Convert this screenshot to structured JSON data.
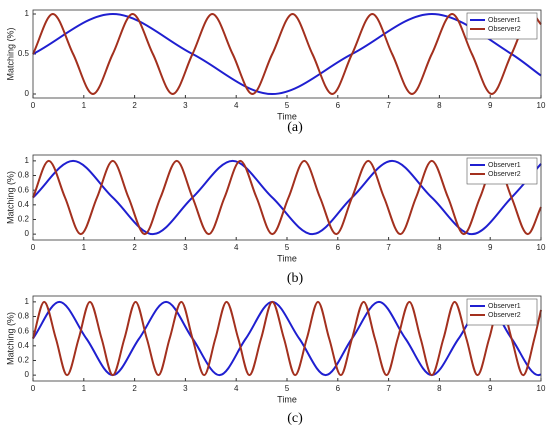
{
  "chart_data": [
    {
      "type": "line",
      "caption": "(a)",
      "xlabel": "Time",
      "ylabel": "Matching (%)",
      "xlim": [
        0,
        10
      ],
      "ylim": [
        -0.05,
        1.05
      ],
      "xticks": [
        0,
        1,
        2,
        3,
        4,
        5,
        6,
        7,
        8,
        9,
        10
      ],
      "yticks": [
        0,
        0.5,
        1
      ],
      "legend": "upper-right",
      "series": [
        {
          "name": "Observer1",
          "color": "#1f1fd0",
          "x": [
            0,
            1.57,
            3.14,
            4.71,
            6.28,
            7.85,
            9.42,
            10
          ],
          "values": [
            0.5,
            1,
            0.5,
            0,
            0.5,
            1,
            0.5,
            0.23
          ]
        },
        {
          "name": "Observer2",
          "color": "#a3301e",
          "x": [
            0,
            0.39,
            0.79,
            1.18,
            1.57,
            1.96,
            2.36,
            2.75,
            3.14,
            3.53,
            3.93,
            4.32,
            4.71,
            5.11,
            5.5,
            5.89,
            6.28,
            6.68,
            7.07,
            7.46,
            7.85,
            8.25,
            8.64,
            9.03,
            9.42,
            9.82,
            10
          ],
          "values": [
            0.5,
            1,
            0.5,
            0,
            0.5,
            1,
            0.5,
            0,
            0.5,
            1,
            0.5,
            0,
            0.5,
            1,
            0.5,
            0,
            0.5,
            1,
            0.5,
            0,
            0.5,
            1,
            0.5,
            0,
            0.5,
            1,
            0.87
          ]
        }
      ]
    },
    {
      "type": "line",
      "caption": "(b)",
      "xlabel": "Time",
      "ylabel": "Matching (%)",
      "xlim": [
        0,
        10
      ],
      "ylim": [
        -0.08,
        1.08
      ],
      "xticks": [
        0,
        1,
        2,
        3,
        4,
        5,
        6,
        7,
        8,
        9,
        10
      ],
      "yticks": [
        0,
        0.2,
        0.4,
        0.6,
        0.8,
        1
      ],
      "legend": "upper-right",
      "series": [
        {
          "name": "Observer1",
          "color": "#1f1fd0",
          "x": [
            0,
            0.79,
            1.57,
            2.36,
            3.14,
            3.93,
            4.71,
            5.5,
            6.28,
            7.07,
            7.85,
            8.64,
            9.42,
            10
          ],
          "values": [
            0.5,
            1,
            0.5,
            0,
            0.5,
            1,
            0.5,
            0,
            0.5,
            1,
            0.5,
            0,
            0.5,
            0.96
          ]
        },
        {
          "name": "Observer2",
          "color": "#a3301e",
          "x": [
            0,
            0.31,
            0.63,
            0.94,
            1.26,
            1.57,
            1.88,
            2.2,
            2.51,
            2.83,
            3.14,
            3.46,
            3.77,
            4.08,
            4.4,
            4.71,
            5.03,
            5.34,
            5.65,
            5.97,
            6.28,
            6.6,
            6.91,
            7.23,
            7.54,
            7.85,
            8.17,
            8.48,
            8.8,
            9.11,
            9.42,
            9.74,
            10
          ],
          "values": [
            0.5,
            1,
            0.5,
            0,
            0.5,
            1,
            0.5,
            0,
            0.5,
            1,
            0.5,
            0,
            0.5,
            1,
            0.5,
            0,
            0.5,
            1,
            0.5,
            0,
            0.5,
            1,
            0.5,
            0,
            0.5,
            1,
            0.5,
            0,
            0.5,
            1,
            0.5,
            0,
            0.37
          ]
        }
      ]
    },
    {
      "type": "line",
      "caption": "(c)",
      "xlabel": "Time",
      "ylabel": "Matching (%)",
      "xlim": [
        0,
        10
      ],
      "ylim": [
        -0.08,
        1.08
      ],
      "xticks": [
        0,
        1,
        2,
        3,
        4,
        5,
        6,
        7,
        8,
        9,
        10
      ],
      "yticks": [
        0,
        0.2,
        0.4,
        0.6,
        0.8,
        1
      ],
      "legend": "upper-right",
      "series": [
        {
          "name": "Observer1",
          "color": "#1f1fd0",
          "x": [
            0,
            0.52,
            1.05,
            1.57,
            2.09,
            2.62,
            3.14,
            3.67,
            4.19,
            4.71,
            5.24,
            5.76,
            6.28,
            6.81,
            7.33,
            7.85,
            8.38,
            8.9,
            9.42,
            9.95,
            10
          ],
          "values": [
            0.5,
            1,
            0.5,
            0,
            0.5,
            1,
            0.5,
            0,
            0.5,
            1,
            0.5,
            0,
            0.5,
            1,
            0.5,
            0,
            0.5,
            1,
            0.5,
            0,
            0.01
          ]
        },
        {
          "name": "Observer2",
          "color": "#a3301e",
          "x": [
            0,
            0.22,
            0.45,
            0.67,
            0.9,
            1.12,
            1.35,
            1.57,
            1.8,
            2.02,
            2.24,
            2.47,
            2.69,
            2.92,
            3.14,
            3.37,
            3.59,
            3.81,
            4.04,
            4.26,
            4.49,
            4.71,
            4.94,
            5.16,
            5.39,
            5.61,
            5.83,
            6.06,
            6.28,
            6.51,
            6.73,
            6.96,
            7.18,
            7.41,
            7.63,
            7.85,
            8.08,
            8.3,
            8.53,
            8.75,
            8.98,
            9.2,
            9.42,
            9.65,
            9.87,
            10
          ],
          "values": [
            0.5,
            1,
            0.5,
            0,
            0.5,
            1,
            0.5,
            0,
            0.5,
            1,
            0.5,
            0,
            0.5,
            1,
            0.5,
            0,
            0.5,
            1,
            0.5,
            0,
            0.5,
            1,
            0.5,
            0,
            0.5,
            1,
            0.5,
            0,
            0.5,
            1,
            0.5,
            0,
            0.5,
            1,
            0.5,
            0,
            0.5,
            1,
            0.5,
            0,
            0.5,
            1,
            0.5,
            0,
            0.5,
            0.89
          ]
        }
      ]
    }
  ]
}
